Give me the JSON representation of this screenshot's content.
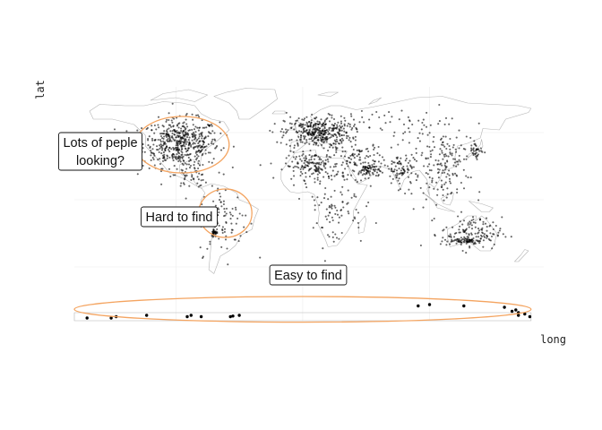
{
  "chart_data": {
    "type": "scatter",
    "title": "",
    "xlabel": "long",
    "ylabel": "lat",
    "xlim": [
      -180,
      190
    ],
    "ylim": [
      -90,
      84
    ],
    "grid": true,
    "legend": "none",
    "point_color": "#000000",
    "land_color": "#b5b5b5",
    "highlight_color": "#f4a460",
    "annotations": [
      {
        "label_lines": [
          "Lots of peple",
          "looking?"
        ],
        "region_lon": [
          -132,
          -58
        ],
        "region_lat": [
          20,
          62
        ]
      },
      {
        "label_lines": [
          "Hard to find"
        ],
        "region_lon": [
          -82,
          -40
        ],
        "region_lat": [
          -28,
          8
        ]
      },
      {
        "label_lines": [
          "Easy to find"
        ],
        "region_lon": [
          -180,
          180
        ],
        "region_lat": [
          -91,
          -72
        ]
      }
    ],
    "clusters": [
      {
        "region": "north-america",
        "center": [
          -96,
          42
        ],
        "spread": [
          15,
          9
        ],
        "count": 520
      },
      {
        "region": "central-america",
        "center": [
          -88,
          17
        ],
        "spread": [
          7,
          4
        ],
        "count": 40
      },
      {
        "region": "europe",
        "center": [
          12,
          50
        ],
        "spread": [
          13,
          6
        ],
        "count": 360
      },
      {
        "region": "sahara",
        "center": [
          8,
          25
        ],
        "spread": [
          11,
          5
        ],
        "count": 160
      },
      {
        "region": "middle-east",
        "center": [
          44,
          30
        ],
        "spread": [
          10,
          7
        ],
        "count": 100
      },
      {
        "region": "arabia",
        "center": [
          52,
          22
        ],
        "spread": [
          4,
          2.5
        ],
        "count": 60
      },
      {
        "region": "india",
        "center": [
          78,
          22
        ],
        "spread": [
          7,
          7
        ],
        "count": 90
      },
      {
        "region": "east-asia",
        "center": [
          112,
          33
        ],
        "spread": [
          11,
          9
        ],
        "count": 120
      },
      {
        "region": "japan",
        "center": [
          137,
          37
        ],
        "spread": [
          3,
          3
        ],
        "count": 30
      },
      {
        "region": "southeast-asia",
        "center": [
          105,
          8
        ],
        "spread": [
          12,
          8
        ],
        "count": 50
      },
      {
        "region": "australia",
        "center": [
          133,
          -25
        ],
        "spread": [
          12,
          6
        ],
        "count": 140
      },
      {
        "region": "nullarbor",
        "center": [
          128,
          -30.5
        ],
        "spread": [
          6,
          1.2
        ],
        "count": 60
      },
      {
        "region": "south-america",
        "center": [
          -62,
          -15
        ],
        "spread": [
          10,
          13
        ],
        "count": 90
      },
      {
        "region": "atacama",
        "center": [
          -69.5,
          -24.5
        ],
        "spread": [
          1.2,
          1.5
        ],
        "count": 35
      },
      {
        "region": "africa",
        "center": [
          25,
          -5
        ],
        "spread": [
          12,
          15
        ],
        "count": 90
      },
      {
        "region": "russia",
        "center": [
          60,
          57
        ],
        "spread": [
          30,
          5
        ],
        "count": 70
      }
    ],
    "antarctic_points": [
      {
        "lon": -170,
        "lat": -88
      },
      {
        "lon": -151,
        "lat": -88
      },
      {
        "lon": -147,
        "lat": -87
      },
      {
        "lon": -123,
        "lat": -86
      },
      {
        "lon": -91,
        "lat": -87
      },
      {
        "lon": -88,
        "lat": -86
      },
      {
        "lon": -80,
        "lat": -87
      },
      {
        "lon": -57,
        "lat": -87
      },
      {
        "lon": -55,
        "lat": -86.5
      },
      {
        "lon": -50,
        "lat": -86
      },
      {
        "lon": 91,
        "lat": -79
      },
      {
        "lon": 100,
        "lat": -78
      },
      {
        "lon": 127,
        "lat": -79
      },
      {
        "lon": 159,
        "lat": -80
      },
      {
        "lon": 165,
        "lat": -83
      },
      {
        "lon": 168,
        "lat": -82
      },
      {
        "lon": 170,
        "lat": -84
      },
      {
        "lon": 170,
        "lat": -86
      },
      {
        "lon": 175,
        "lat": -85
      },
      {
        "lon": 179,
        "lat": -87
      }
    ]
  }
}
